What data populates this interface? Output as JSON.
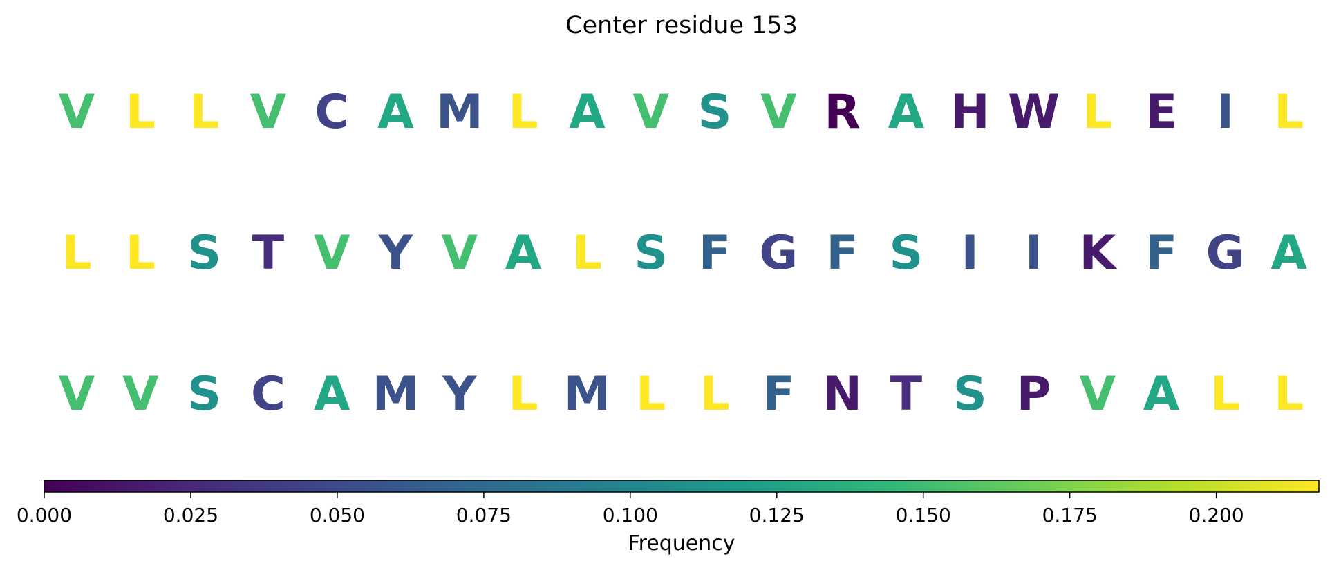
{
  "chart_data": {
    "type": "table",
    "title": "Center residue 153",
    "rows": [
      {
        "residues": [
          "V",
          "L",
          "L",
          "V",
          "C",
          "A",
          "M",
          "L",
          "A",
          "V",
          "S",
          "V",
          "R",
          "A",
          "H",
          "W",
          "L",
          "E",
          "I",
          "L"
        ],
        "colors": [
          "#45bf6f",
          "#fde725",
          "#fde725",
          "#45bf6f",
          "#414487",
          "#22a884",
          "#3b528b",
          "#fde725",
          "#22a884",
          "#45bf6f",
          "#21918c",
          "#45bf6f",
          "#440154",
          "#22a884",
          "#481a6c",
          "#481a6c",
          "#fde725",
          "#481a6c",
          "#3b528b",
          "#fde725"
        ]
      },
      {
        "residues": [
          "L",
          "L",
          "S",
          "T",
          "V",
          "Y",
          "V",
          "A",
          "L",
          "S",
          "F",
          "G",
          "F",
          "S",
          "I",
          "I",
          "K",
          "F",
          "G",
          "A"
        ],
        "colors": [
          "#fde725",
          "#fde725",
          "#21918c",
          "#472d7b",
          "#45bf6f",
          "#3b528b",
          "#45bf6f",
          "#22a884",
          "#fde725",
          "#21918c",
          "#33638d",
          "#414487",
          "#33638d",
          "#21918c",
          "#3b528b",
          "#3b528b",
          "#481a6c",
          "#33638d",
          "#414487",
          "#22a884"
        ]
      },
      {
        "residues": [
          "V",
          "V",
          "S",
          "C",
          "A",
          "M",
          "Y",
          "L",
          "M",
          "L",
          "L",
          "F",
          "N",
          "T",
          "S",
          "P",
          "V",
          "A",
          "L",
          "L"
        ],
        "colors": [
          "#45bf6f",
          "#45bf6f",
          "#21918c",
          "#414487",
          "#22a884",
          "#3b528b",
          "#3b528b",
          "#fde725",
          "#3b528b",
          "#fde725",
          "#fde725",
          "#33638d",
          "#481a6c",
          "#472d7b",
          "#21918c",
          "#481a6c",
          "#45bf6f",
          "#22a884",
          "#fde725",
          "#fde725"
        ]
      }
    ],
    "colorbar": {
      "label": "Frequency",
      "range": [
        0,
        0.2175
      ],
      "ticks": [
        "0.000",
        "0.025",
        "0.050",
        "0.075",
        "0.100",
        "0.125",
        "0.150",
        "0.175",
        "0.200"
      ],
      "tick_values": [
        0,
        0.025,
        0.05,
        0.075,
        0.1,
        0.125,
        0.15,
        0.175,
        0.2
      ],
      "colormap": "viridis",
      "colormap_stops": [
        "#440154",
        "#482878",
        "#3e4989",
        "#31688e",
        "#26828e",
        "#1f9e89",
        "#35b779",
        "#6ece58",
        "#b5de2b",
        "#fde725"
      ]
    }
  }
}
